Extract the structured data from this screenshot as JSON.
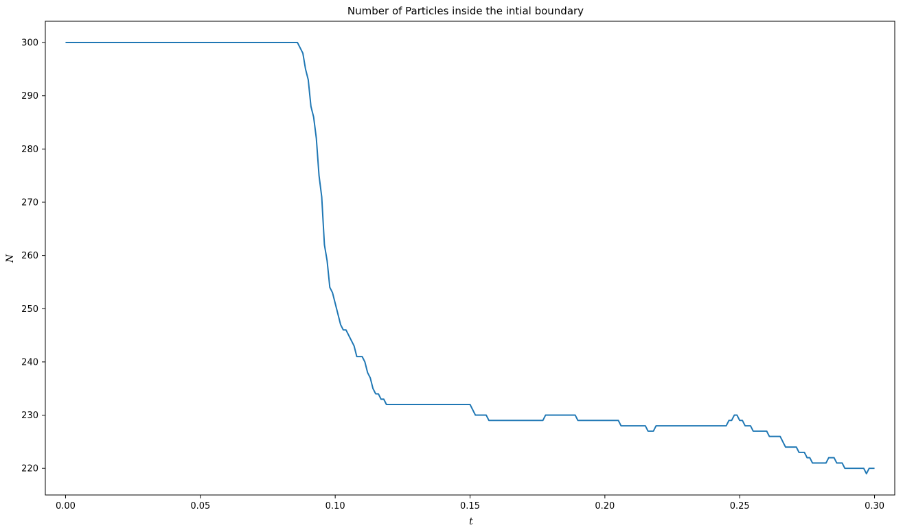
{
  "chart_data": {
    "type": "line",
    "title": "Number of Particles inside the intial boundary",
    "xlabel": "t",
    "ylabel": "N",
    "xlim": [
      -0.0075,
      0.3075
    ],
    "ylim": [
      215,
      304
    ],
    "xticks": [
      0.0,
      0.05,
      0.1,
      0.15,
      0.2,
      0.25,
      0.3
    ],
    "xtick_labels": [
      "0.00",
      "0.05",
      "0.10",
      "0.15",
      "0.20",
      "0.25",
      "0.30"
    ],
    "yticks": [
      220,
      230,
      240,
      250,
      260,
      270,
      280,
      290,
      300
    ],
    "ytick_labels": [
      "220",
      "230",
      "240",
      "250",
      "260",
      "270",
      "280",
      "290",
      "300"
    ],
    "grid": false,
    "legend": "none",
    "series": [
      {
        "color": "#1f77b4",
        "x": [
          0.0,
          0.086,
          0.087,
          0.088,
          0.089,
          0.09,
          0.091,
          0.092,
          0.093,
          0.094,
          0.095,
          0.096,
          0.097,
          0.098,
          0.099,
          0.1,
          0.101,
          0.102,
          0.103,
          0.104,
          0.105,
          0.106,
          0.107,
          0.108,
          0.109,
          0.11,
          0.111,
          0.112,
          0.113,
          0.114,
          0.115,
          0.116,
          0.117,
          0.118,
          0.119,
          0.15,
          0.152,
          0.156,
          0.157,
          0.177,
          0.178,
          0.189,
          0.19,
          0.205,
          0.206,
          0.215,
          0.216,
          0.218,
          0.219,
          0.245,
          0.246,
          0.247,
          0.248,
          0.249,
          0.25,
          0.251,
          0.252,
          0.254,
          0.255,
          0.26,
          0.261,
          0.265,
          0.267,
          0.271,
          0.272,
          0.274,
          0.275,
          0.276,
          0.277,
          0.282,
          0.283,
          0.285,
          0.286,
          0.288,
          0.289,
          0.296,
          0.297,
          0.298,
          0.3
        ],
        "y": [
          300,
          300,
          299,
          298,
          295,
          293,
          288,
          286,
          282,
          275,
          271,
          262,
          259,
          254,
          253,
          251,
          249,
          247,
          246,
          246,
          245,
          244,
          243,
          241,
          241,
          241,
          240,
          238,
          237,
          235,
          234,
          234,
          233,
          233,
          232,
          232,
          230,
          230,
          229,
          229,
          230,
          230,
          229,
          229,
          228,
          228,
          227,
          227,
          228,
          228,
          229,
          229,
          230,
          230,
          229,
          229,
          228,
          228,
          227,
          227,
          226,
          226,
          224,
          224,
          223,
          223,
          222,
          222,
          221,
          221,
          222,
          222,
          221,
          221,
          220,
          220,
          219,
          220,
          220
        ]
      }
    ]
  }
}
